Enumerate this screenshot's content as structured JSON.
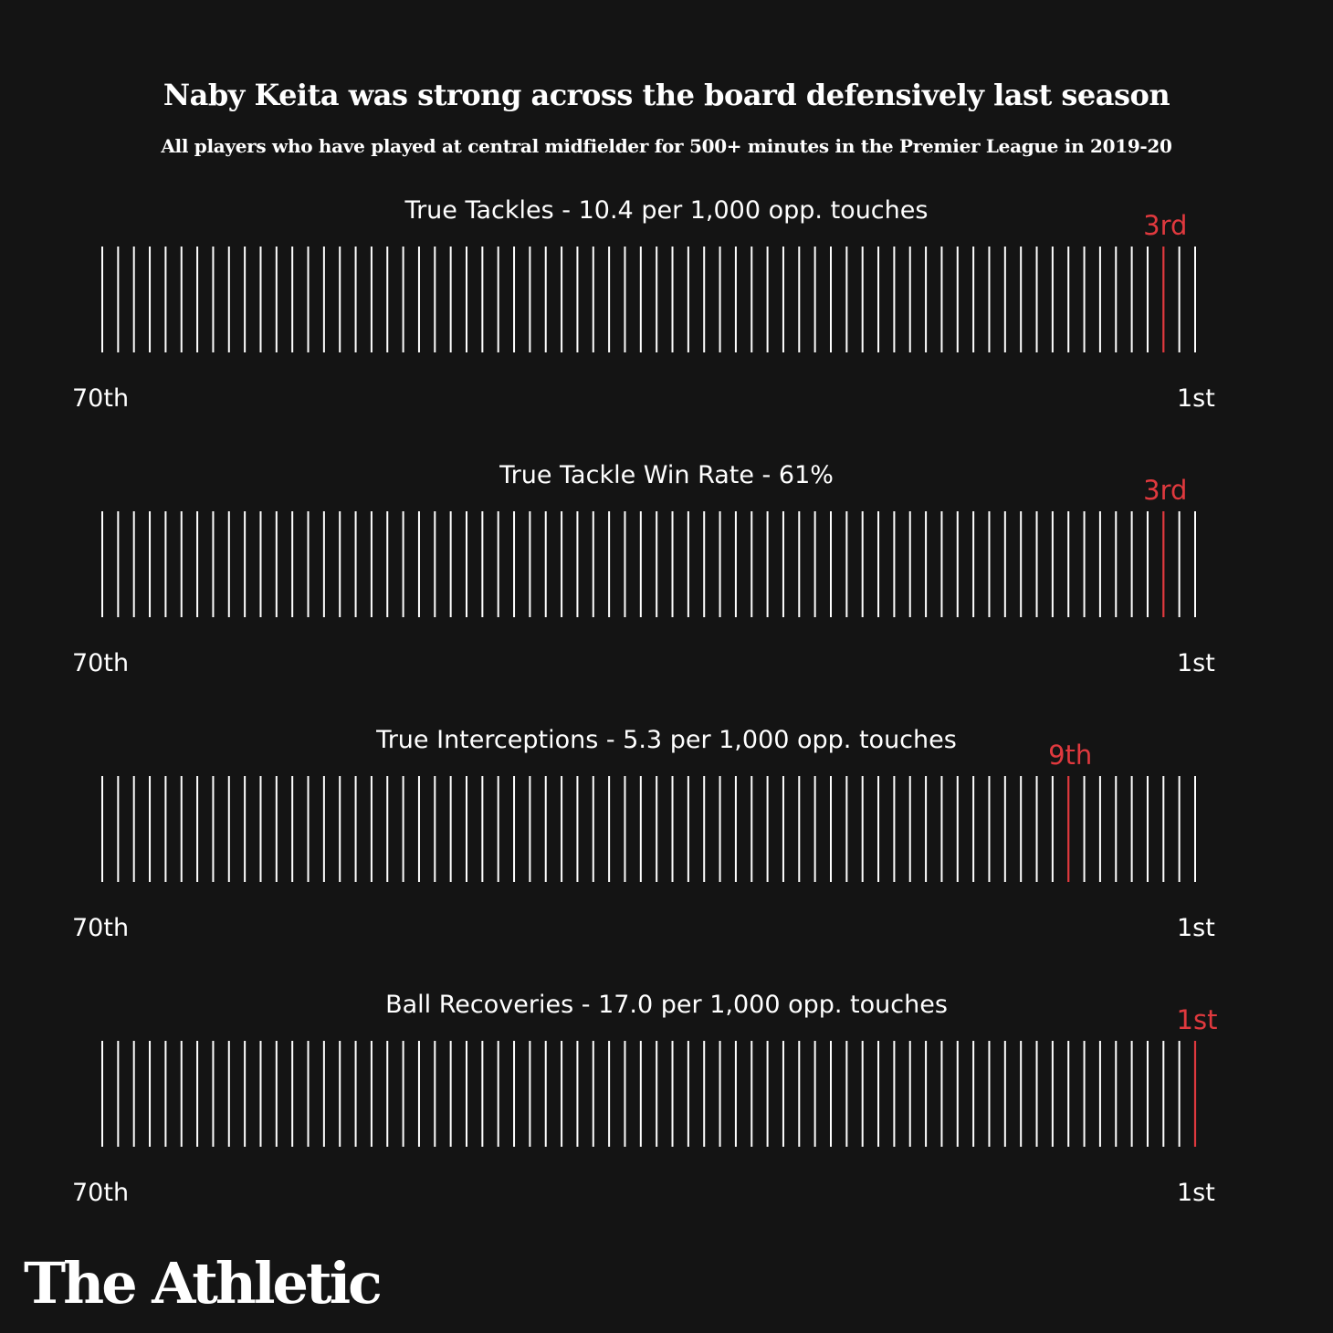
{
  "colors": {
    "background": "#141414",
    "tick": "#ffffff",
    "highlight": "#e0393e"
  },
  "chart_data": {
    "type": "strip",
    "title": "Naby Keita was strong across the board defensively last season",
    "subtitle": "All players who have played at central midfielder for 500+ minutes in the Premier League in 2019-20",
    "player_count": 70,
    "axis": {
      "left_label": "70th",
      "right_label": "1st"
    },
    "metrics": [
      {
        "label": "True Tackles - 10.4 per 1,000 opp. touches",
        "rank": 3,
        "rank_label": "3rd"
      },
      {
        "label": "True Tackle Win Rate - 61%",
        "rank": 3,
        "rank_label": "3rd"
      },
      {
        "label": "True Interceptions - 5.3 per 1,000 opp. touches",
        "rank": 9,
        "rank_label": "9th"
      },
      {
        "label": "Ball Recoveries - 17.0 per 1,000 opp. touches",
        "rank": 1,
        "rank_label": "1st"
      }
    ]
  },
  "brand": {
    "logo_text": "The Athletic"
  }
}
